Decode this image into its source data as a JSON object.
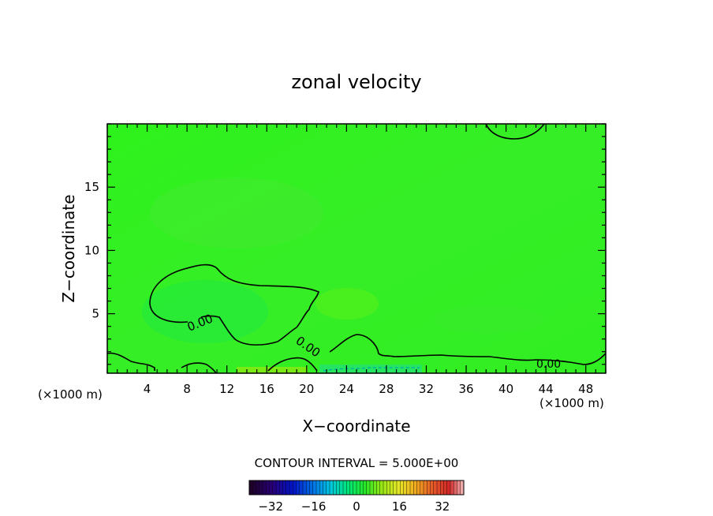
{
  "chart_data": {
    "type": "heatmap",
    "title": "zonal velocity",
    "xlabel": "X−coordinate",
    "ylabel": "Z−coordinate",
    "x_units": "(×1000 m)",
    "xlim": [
      0,
      50
    ],
    "ylim": [
      0.3,
      20
    ],
    "x_ticks": [
      4,
      8,
      12,
      16,
      20,
      24,
      28,
      32,
      36,
      40,
      44,
      48
    ],
    "y_ticks": [
      5,
      10,
      15
    ],
    "field_fill_color": "#2cf01c",
    "contour_interval_text": "CONTOUR INTERVAL = 5.000E+00",
    "contour_labels": [
      "0.00",
      "0.00",
      "0.00"
    ],
    "colorbar": {
      "range": [
        -40,
        40
      ],
      "tick_values": [
        -32,
        -16,
        0,
        16,
        32
      ],
      "tick_labels": [
        "−32",
        "−16",
        "0",
        "16",
        "32"
      ]
    }
  }
}
